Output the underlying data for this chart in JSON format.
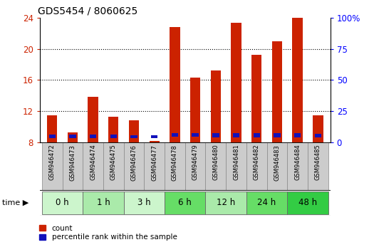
{
  "title": "GDS5454 / 8060625",
  "samples": [
    "GSM946472",
    "GSM946473",
    "GSM946474",
    "GSM946475",
    "GSM946476",
    "GSM946477",
    "GSM946478",
    "GSM946479",
    "GSM946480",
    "GSM946481",
    "GSM946482",
    "GSM946483",
    "GSM946484",
    "GSM946485"
  ],
  "count_values": [
    11.5,
    9.3,
    13.8,
    11.3,
    10.8,
    8.2,
    22.8,
    16.3,
    17.2,
    23.3,
    19.2,
    21.0,
    24.0,
    11.5
  ],
  "blue_bottoms": [
    8.55,
    8.55,
    8.55,
    8.55,
    8.55,
    8.55,
    8.7,
    8.7,
    8.65,
    8.65,
    8.65,
    8.65,
    8.65,
    8.65
  ],
  "blue_heights": [
    0.5,
    0.5,
    0.45,
    0.45,
    0.4,
    0.35,
    0.5,
    0.5,
    0.5,
    0.5,
    0.5,
    0.5,
    0.5,
    0.45
  ],
  "time_groups": [
    {
      "label": "0 h",
      "start": 0,
      "end": 1,
      "color": "#ccf5cc"
    },
    {
      "label": "1 h",
      "start": 2,
      "end": 3,
      "color": "#aaeaaa"
    },
    {
      "label": "3 h",
      "start": 4,
      "end": 5,
      "color": "#ccf5cc"
    },
    {
      "label": "6 h",
      "start": 6,
      "end": 7,
      "color": "#66dd66"
    },
    {
      "label": "12 h",
      "start": 8,
      "end": 9,
      "color": "#aaeaaa"
    },
    {
      "label": "24 h",
      "start": 10,
      "end": 11,
      "color": "#66dd66"
    },
    {
      "label": "48 h",
      "start": 12,
      "end": 13,
      "color": "#33cc44"
    }
  ],
  "y_min": 8,
  "y_max": 24,
  "y_ticks_left": [
    8,
    12,
    16,
    20,
    24
  ],
  "y_ticks_right_labels": [
    "0",
    "25",
    "50",
    "75",
    "100%"
  ],
  "y_ticks_right_pos": [
    8,
    12,
    16,
    20,
    24
  ],
  "bar_color_red": "#cc2200",
  "bar_color_blue": "#1111bb",
  "sample_bg": "#cccccc",
  "bar_width": 0.5
}
